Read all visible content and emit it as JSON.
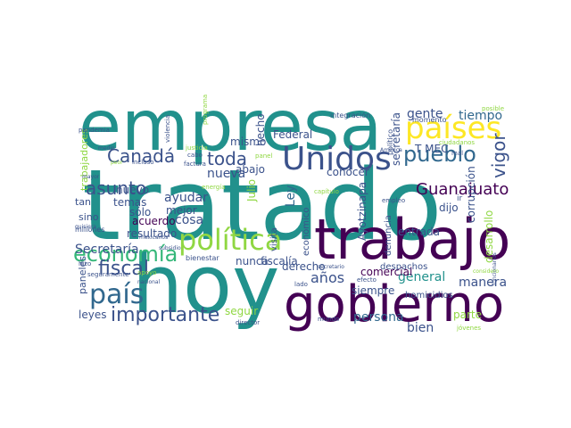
{
  "palette": {
    "dark_purple": "#440154",
    "indigo": "#3b528b",
    "blue": "#31688e",
    "teal": "#21918c",
    "green": "#35b779",
    "yellow_green": "#90d743",
    "yellow": "#fde725"
  },
  "words": [
    {
      "text": "tratado",
      "color": "#21918c"
    },
    {
      "text": "hoy",
      "color": "#21918c"
    },
    {
      "text": "empresa",
      "color": "#21918c"
    },
    {
      "text": "trabajo",
      "color": "#440154"
    },
    {
      "text": "gobierno",
      "color": "#440154"
    },
    {
      "text": "política",
      "color": "#90d743"
    },
    {
      "text": "Unidos",
      "color": "#3b528b"
    },
    {
      "text": "países",
      "color": "#fde725"
    },
    {
      "text": "país",
      "color": "#31688e"
    },
    {
      "text": "pueblo",
      "color": "#31688e"
    },
    {
      "text": "economía",
      "color": "#35b779"
    },
    {
      "text": "fiscal",
      "color": "#3b528b"
    },
    {
      "text": "importante",
      "color": "#3b528b"
    },
    {
      "text": "Canadá",
      "color": "#3b528b"
    },
    {
      "text": "asunto",
      "color": "#3b528b"
    },
    {
      "text": "toda",
      "color": "#3b528b"
    },
    {
      "text": "vigor",
      "color": "#3b528b"
    },
    {
      "text": "Guanajuato",
      "color": "#440154"
    },
    {
      "text": "tiempo",
      "color": "#31688e"
    },
    {
      "text": "gente",
      "color": "#3b528b"
    },
    {
      "text": "nueva",
      "color": "#3b528b"
    },
    {
      "text": "años",
      "color": "#3b528b"
    },
    {
      "text": "general",
      "color": "#21918c"
    },
    {
      "text": "manera",
      "color": "#3b528b"
    },
    {
      "text": "persona",
      "color": "#31688e"
    },
    {
      "text": "bien",
      "color": "#3b528b"
    },
    {
      "text": "Ley",
      "color": "#31688e"
    },
    {
      "text": "cosa",
      "color": "#3b528b"
    },
    {
      "text": "ayudar",
      "color": "#3b528b"
    },
    {
      "text": "acuerdo",
      "color": "#440154"
    },
    {
      "text": "resultado",
      "color": "#3b528b"
    },
    {
      "text": "Secretaría",
      "color": "#3b528b"
    },
    {
      "text": "sólo",
      "color": "#3b528b"
    },
    {
      "text": "nuevo",
      "color": "#3b528b"
    },
    {
      "text": "temas",
      "color": "#3b528b"
    },
    {
      "text": "mejor",
      "color": "#3b528b"
    },
    {
      "text": "dijo",
      "color": "#3b528b"
    },
    {
      "text": "derecho",
      "color": "#3b528b"
    },
    {
      "text": "comercial",
      "color": "#440154"
    },
    {
      "text": "siempre",
      "color": "#3b528b"
    },
    {
      "text": "nunca",
      "color": "#3b528b"
    },
    {
      "text": "fiscalía",
      "color": "#3b528b"
    },
    {
      "text": "leyes",
      "color": "#3b528b"
    },
    {
      "text": "parte",
      "color": "#90d743"
    },
    {
      "text": "seguir",
      "color": "#90d743"
    },
    {
      "text": "Federal",
      "color": "#3b528b"
    },
    {
      "text": "mismo",
      "color": "#3b528b"
    },
    {
      "text": "abajo",
      "color": "#3b528b"
    },
    {
      "text": "conocer",
      "color": "#3b528b"
    },
    {
      "text": "entrada",
      "color": "#3b528b"
    },
    {
      "text": "corrupción",
      "color": "#3b528b"
    },
    {
      "text": "desarrollo",
      "color": "#90d743"
    },
    {
      "text": "Ayotzinapa",
      "color": "#3b528b"
    },
    {
      "text": "secretaría",
      "color": "#3b528b"
    },
    {
      "text": "hecho",
      "color": "#3b528b"
    },
    {
      "text": "T MEC",
      "color": "#3b528b"
    },
    {
      "text": "Julio",
      "color": "#90d743"
    },
    {
      "text": "visita",
      "color": "#3b528b"
    },
    {
      "text": "económico",
      "color": "#3b528b"
    },
    {
      "text": "denuncia",
      "color": "#3b528b"
    },
    {
      "text": "homicidios",
      "color": "#3b528b"
    },
    {
      "text": "despachos",
      "color": "#3b528b"
    },
    {
      "text": "trabajadores",
      "color": "#90d743"
    },
    {
      "text": "tan",
      "color": "#3b528b"
    },
    {
      "text": "sino",
      "color": "#3b528b"
    },
    {
      "text": "millones",
      "color": "#3b528b"
    },
    {
      "text": "paneles",
      "color": "#3b528b"
    },
    {
      "text": "bienestar",
      "color": "#3b528b"
    },
    {
      "text": "mundo",
      "color": "#3b528b"
    },
    {
      "text": "director",
      "color": "#3b528b"
    },
    {
      "text": "secretario",
      "color": "#3b528b"
    },
    {
      "text": "lado",
      "color": "#3b528b"
    },
    {
      "text": "político",
      "color": "#3b528b"
    },
    {
      "text": "momento",
      "color": "#3b528b"
    },
    {
      "text": "integración",
      "color": "#3b528b"
    },
    {
      "text": "ciudadanos",
      "color": "#90d743"
    },
    {
      "text": "mal",
      "color": "#3b528b"
    },
    {
      "text": "posible",
      "color": "#90d743"
    },
    {
      "text": "jóvenes",
      "color": "#90d743"
    },
    {
      "text": "funcionarios",
      "color": "#3b528b"
    },
    {
      "text": "pandemia",
      "color": "#3b528b"
    },
    {
      "text": "violencia",
      "color": "#3b528b"
    },
    {
      "text": "programa",
      "color": "#90d743"
    },
    {
      "text": "justicia",
      "color": "#90d743"
    },
    {
      "text": "cabo",
      "color": "#3b528b"
    },
    {
      "text": "factura",
      "color": "#3b528b"
    },
    {
      "text": "panel",
      "color": "#90d743"
    },
    {
      "text": "América",
      "color": "#3b528b"
    },
    {
      "text": "incluso",
      "color": "#3b528b"
    },
    {
      "text": "medio",
      "color": "#3b528b"
    },
    {
      "text": "peor",
      "color": "#90d743"
    },
    {
      "text": "mayor",
      "color": "#3b528b"
    },
    {
      "text": "hizo",
      "color": "#3b528b"
    },
    {
      "text": "seguramente",
      "color": "#3b528b"
    },
    {
      "text": "nacional",
      "color": "#3b528b"
    },
    {
      "text": "mexicanos",
      "color": "#3b528b"
    },
    {
      "text": "apoyo",
      "color": "#90d743"
    },
    {
      "text": "subsidio",
      "color": "#3b528b"
    },
    {
      "text": "quisiera",
      "color": "#3b528b"
    },
    {
      "text": "energía",
      "color": "#90d743"
    },
    {
      "text": "capítulo",
      "color": "#90d743"
    },
    {
      "text": "empleo",
      "color": "#3b528b"
    },
    {
      "text": "ir",
      "color": "#3b528b"
    },
    {
      "text": "efecto",
      "color": "#3b528b"
    },
    {
      "text": "considero",
      "color": "#90d743"
    }
  ]
}
